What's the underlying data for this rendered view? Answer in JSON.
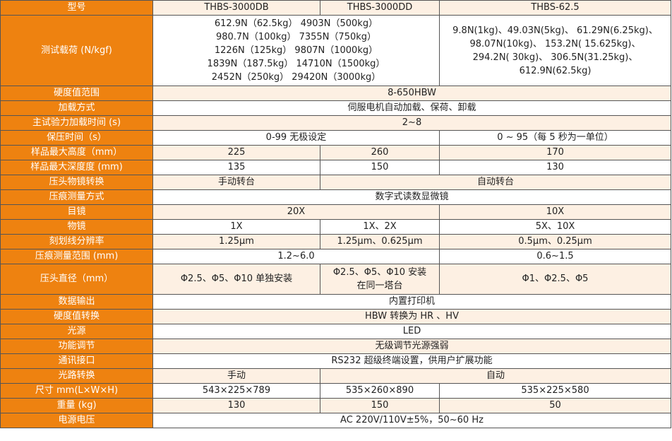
{
  "colors": {
    "label_bg": "#ee8210",
    "row_alt_bg": "#fdf0e3"
  },
  "table": {
    "rows": [
      {
        "label": "型号",
        "cells": [
          {
            "text": "THBS-3000DB",
            "span": 1
          },
          {
            "text": "THBS-3000DD",
            "span": 1
          },
          {
            "text": "THBS-62.5",
            "span": 1
          }
        ]
      },
      {
        "label": "测试载荷 (N/kgf)",
        "cells": [
          {
            "text": "612.9N（62.5kg） 4903N（500kg）\n980.7N（100kg） 7355N（750kg）\n1226N（125kg） 9807N（1000kg）\n1839N（187.5kg） 14710N（1500kg）\n2452N（250kg） 29420N（3000kg）",
            "span": 2
          },
          {
            "text": "9.8N(1kg)、49.03N(5kg)、 61.29N(6.25kg)、\n98.07N(10kg)、 153.2N( 15.625kg)、\n294.2N( 30kg)、 306.5N(31.25kg)、\n612.9N(62.5kg)",
            "span": 1
          }
        ]
      },
      {
        "label": "硬度值范围",
        "cells": [
          {
            "text": "8-650HBW",
            "span": 3
          }
        ]
      },
      {
        "label": "加载方式",
        "cells": [
          {
            "text": "伺服电机自动加载、保荷、卸载",
            "span": 3
          }
        ]
      },
      {
        "label": "主试验力加载时间 (s)",
        "cells": [
          {
            "text": "2~8",
            "span": 3
          }
        ]
      },
      {
        "label": "保压时间（s）",
        "cells": [
          {
            "text": "0-99 无极设定",
            "span": 2
          },
          {
            "text": "0 ~ 95（每 5 秒为一单位）",
            "span": 1
          }
        ]
      },
      {
        "label": "样品最大高度（mm）",
        "cells": [
          {
            "text": "225",
            "span": 1
          },
          {
            "text": "260",
            "span": 1
          },
          {
            "text": "170",
            "span": 1
          }
        ]
      },
      {
        "label": "样品最大深度度 (mm)",
        "cells": [
          {
            "text": "135",
            "span": 1
          },
          {
            "text": "150",
            "span": 1
          },
          {
            "text": "130",
            "span": 1
          }
        ]
      },
      {
        "label": "压头物镜转换",
        "cells": [
          {
            "text": "手动转台",
            "span": 1
          },
          {
            "text": "自动转台",
            "span": 2
          }
        ]
      },
      {
        "label": "压痕测量方式",
        "cells": [
          {
            "text": "数字式读数显微镜",
            "span": 3
          }
        ]
      },
      {
        "label": "目镜",
        "cells": [
          {
            "text": "20X",
            "span": 2
          },
          {
            "text": "10X",
            "span": 1
          }
        ]
      },
      {
        "label": "物镜",
        "cells": [
          {
            "text": "1X",
            "span": 1
          },
          {
            "text": "1X、2X",
            "span": 1
          },
          {
            "text": "5X、10X",
            "span": 1
          }
        ]
      },
      {
        "label": "刻划线分辨率",
        "cells": [
          {
            "text": "1.25μm",
            "span": 1
          },
          {
            "text": "1.25μm、0.625μm",
            "span": 1
          },
          {
            "text": "0.5μm、0.25μm",
            "span": 1
          }
        ]
      },
      {
        "label": "压痕测量范围 (mm)",
        "cells": [
          {
            "text": "1.2~6.0",
            "span": 2
          },
          {
            "text": "0.6~1.5",
            "span": 1
          }
        ]
      },
      {
        "label": "压头直径（mm）",
        "cells": [
          {
            "text": "Φ2.5、Φ5、Φ10 单独安装",
            "span": 1
          },
          {
            "text": "Φ2.5、Φ5、Φ10 安装\n在同一塔台",
            "span": 1
          },
          {
            "text": "Φ1、Φ2.5、Φ5",
            "span": 1
          }
        ]
      },
      {
        "label": "数据输出",
        "cells": [
          {
            "text": "内置打印机",
            "span": 3
          }
        ]
      },
      {
        "label": "硬度值转换",
        "cells": [
          {
            "text": "HBW 转换为 HR 、HV",
            "span": 3
          }
        ]
      },
      {
        "label": "光源",
        "cells": [
          {
            "text": "LED",
            "span": 3
          }
        ]
      },
      {
        "label": "功能调节",
        "cells": [
          {
            "text": "无级调节光源强弱",
            "span": 3
          }
        ]
      },
      {
        "label": "通讯接口",
        "cells": [
          {
            "text": "RS232 超级终端设置，供用户扩展功能",
            "span": 3
          }
        ]
      },
      {
        "label": "光路转换",
        "cells": [
          {
            "text": "手动",
            "span": 1
          },
          {
            "text": "自动",
            "span": 2
          }
        ]
      },
      {
        "label": "尺寸 mm(L×W×H)",
        "cells": [
          {
            "text": "543×225×789",
            "span": 1
          },
          {
            "text": "535×260×890",
            "span": 1
          },
          {
            "text": "535×225×580",
            "span": 1
          }
        ]
      },
      {
        "label": "重量 (kg)",
        "cells": [
          {
            "text": "130",
            "span": 1
          },
          {
            "text": "150",
            "span": 1
          },
          {
            "text": "50",
            "span": 1
          }
        ]
      },
      {
        "label": "电源电压",
        "cells": [
          {
            "text": "AC 220V/110V±5%，50~60 Hz",
            "span": 3
          }
        ]
      }
    ]
  }
}
